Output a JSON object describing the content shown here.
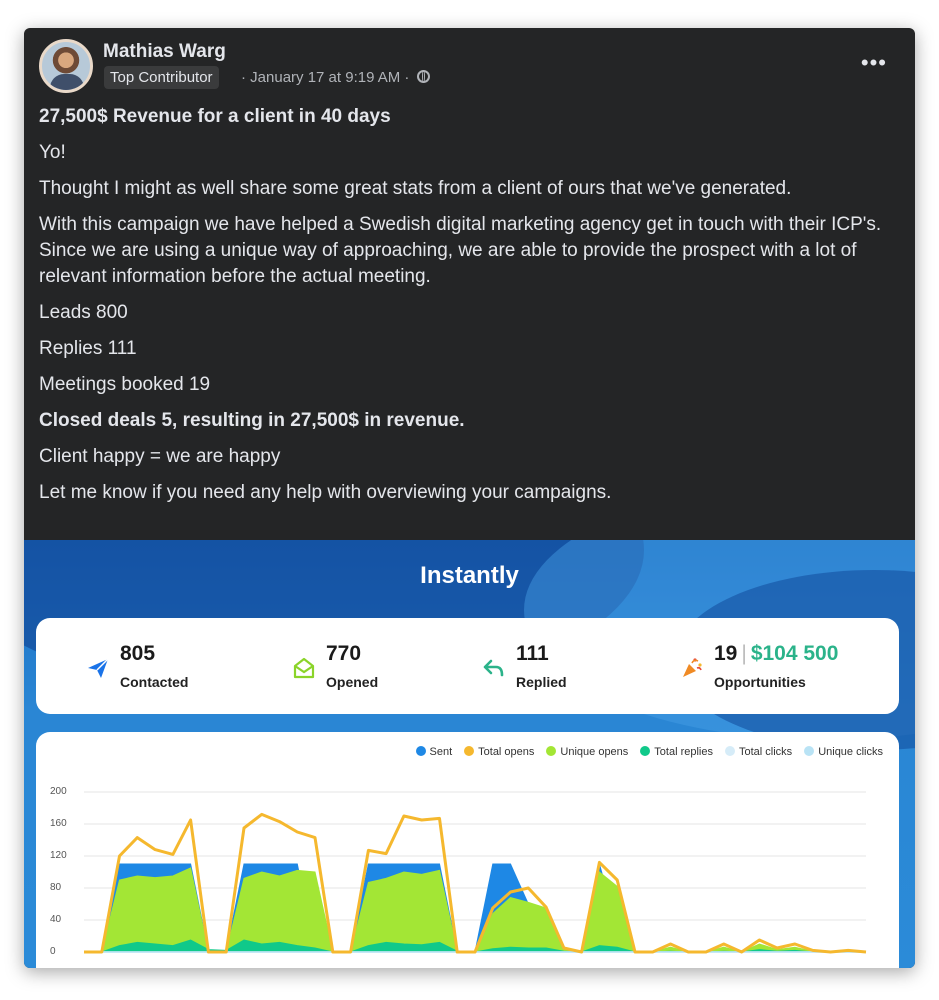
{
  "post": {
    "author": "Mathias Warg",
    "badge": "Top Contributor",
    "meta": "· January 17 at 9:19 AM ·",
    "more_label": "•••",
    "paragraphs": [
      {
        "text": "27,500$ Revenue for a client in 40 days",
        "bold": true
      },
      {
        "text": "Yo!",
        "bold": false
      },
      {
        "text": "Thought I might as well share some great stats from a client of ours that we've generated.",
        "bold": false
      },
      {
        "text": "With this campaign we have helped a Swedish digital marketing agency get in touch with their ICP's. Since we are using a unique way of approaching, we are able to provide the prospect with a lot of relevant information before the actual meeting.",
        "bold": false
      },
      {
        "text": "Leads 800",
        "bold": false
      },
      {
        "text": "Replies 111",
        "bold": false
      },
      {
        "text": "Meetings booked 19",
        "bold": false
      },
      {
        "text": "Closed deals 5, resulting in 27,500$ in revenue.",
        "bold": true
      },
      {
        "text": "Client happy = we are happy",
        "bold": false
      },
      {
        "text": "Let me know if you need any help with overviewing your campaigns.",
        "bold": false
      }
    ]
  },
  "instantly": {
    "brand": "Instantly",
    "stats": [
      {
        "value": "805",
        "label": "Contacted",
        "icon": "paper-plane-icon",
        "color": "#1a73e8"
      },
      {
        "value": "770",
        "label": "Opened",
        "icon": "open-envelope-icon",
        "color": "#8bd42a"
      },
      {
        "value": "111",
        "label": "Replied",
        "icon": "reply-arrow-icon",
        "color": "#2bb38a"
      },
      {
        "value": "19",
        "extra": "$104 500",
        "label": "Opportunities",
        "icon": "party-popper-icon",
        "color": "#f08a24"
      }
    ]
  },
  "chart_data": {
    "type": "area",
    "legend": [
      "Sent",
      "Total opens",
      "Unique opens",
      "Total replies",
      "Total clicks",
      "Unique clicks"
    ],
    "colors": {
      "Sent": "#1e88e5",
      "Total opens": "#f5b82e",
      "Unique opens": "#a3e635",
      "Total replies": "#10c98a",
      "Total clicks": "#d6ecf8",
      "Unique clicks": "#b9e3f5"
    },
    "yticks": [
      "200",
      "160",
      "120",
      "80",
      "40",
      "0"
    ],
    "ylim": [
      0,
      200
    ],
    "series": [
      {
        "name": "Sent",
        "values": [
          0,
          0,
          110,
          110,
          110,
          110,
          110,
          0,
          0,
          110,
          110,
          110,
          110,
          0,
          0,
          0,
          110,
          110,
          110,
          110,
          110,
          0,
          0,
          110,
          110,
          60,
          0,
          0,
          0,
          110,
          30,
          0,
          0,
          0,
          0,
          0,
          0,
          0,
          0,
          0,
          0,
          0,
          0,
          0,
          0
        ]
      },
      {
        "name": "Total opens",
        "values": [
          0,
          0,
          120,
          143,
          128,
          122,
          165,
          0,
          0,
          155,
          172,
          163,
          150,
          143,
          0,
          0,
          127,
          123,
          170,
          165,
          167,
          0,
          0,
          55,
          75,
          80,
          56,
          5,
          0,
          112,
          90,
          0,
          0,
          10,
          0,
          0,
          10,
          0,
          15,
          5,
          10,
          2,
          0,
          2,
          0
        ]
      },
      {
        "name": "Unique opens",
        "values": [
          0,
          0,
          90,
          95,
          93,
          95,
          105,
          0,
          0,
          92,
          100,
          95,
          102,
          100,
          0,
          0,
          87,
          92,
          100,
          97,
          102,
          0,
          0,
          48,
          68,
          62,
          55,
          4,
          0,
          100,
          82,
          0,
          0,
          6,
          0,
          0,
          6,
          0,
          10,
          3,
          6,
          1,
          0,
          1,
          0
        ]
      },
      {
        "name": "Total replies",
        "values": [
          0,
          0,
          8,
          12,
          10,
          8,
          15,
          3,
          2,
          15,
          10,
          12,
          8,
          5,
          0,
          0,
          8,
          12,
          10,
          9,
          12,
          1,
          0,
          4,
          6,
          5,
          5,
          1,
          0,
          8,
          6,
          0,
          0,
          1,
          0,
          0,
          1,
          0,
          3,
          1,
          2,
          0,
          0,
          0,
          0
        ]
      },
      {
        "name": "Total clicks",
        "values": [
          0,
          0,
          0,
          0,
          0,
          0,
          0,
          0,
          0,
          0,
          0,
          0,
          0,
          0,
          0,
          0,
          0,
          0,
          0,
          0,
          0,
          0,
          0,
          0,
          0,
          0,
          0,
          0,
          0,
          0,
          0,
          0,
          0,
          0,
          0,
          0,
          0,
          0,
          0,
          0,
          0,
          0,
          0,
          0,
          0
        ]
      },
      {
        "name": "Unique clicks",
        "values": [
          0,
          0,
          0,
          0,
          0,
          0,
          0,
          0,
          0,
          0,
          0,
          0,
          0,
          0,
          0,
          0,
          0,
          0,
          0,
          0,
          0,
          0,
          0,
          0,
          0,
          0,
          0,
          0,
          0,
          0,
          0,
          0,
          0,
          0,
          0,
          0,
          0,
          0,
          0,
          0,
          0,
          0,
          0,
          0,
          0
        ]
      }
    ]
  }
}
